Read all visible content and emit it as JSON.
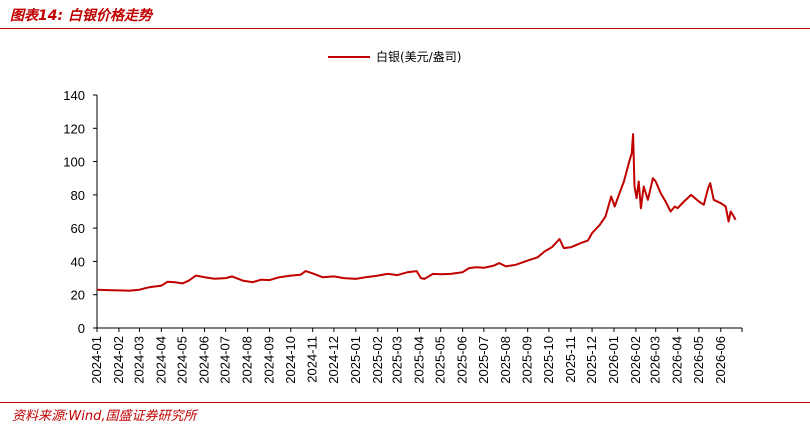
{
  "figure": {
    "title": "图表14:  白银价格走势",
    "source": "资料来源:Wind,国盛证券研究所"
  },
  "colors": {
    "accent": "#c00000",
    "axis": "#000000"
  },
  "chart_data": {
    "type": "line",
    "title": "",
    "xlabel": "",
    "ylabel": "",
    "ylim": [
      0,
      140
    ],
    "yticks": [
      0,
      20,
      40,
      60,
      80,
      100,
      120,
      140
    ],
    "grid": false,
    "legend_position": "top-center",
    "x_tick_labels": [
      "2024-01",
      "2024-02",
      "2024-03",
      "2024-04",
      "2024-05",
      "2024-06",
      "2024-07",
      "2024-08",
      "2024-09",
      "2024-10",
      "2024-11",
      "2024-12",
      "2025-01",
      "2025-02",
      "2025-03",
      "2025-04",
      "2025-05",
      "2025-06",
      "2025-07",
      "2025-08",
      "2025-09",
      "2025-10",
      "2025-11",
      "2025-12",
      "2026-01",
      "2026-02",
      "2026-03",
      "2026-04",
      "2026-05",
      "2026-06"
    ],
    "series": [
      {
        "name": "白银(美元/盎司)",
        "color": "#c00000",
        "points": [
          [
            "2024-01-01",
            23.0
          ],
          [
            "2024-01-15",
            22.8
          ],
          [
            "2024-02-01",
            22.6
          ],
          [
            "2024-02-15",
            22.4
          ],
          [
            "2024-03-01",
            23.0
          ],
          [
            "2024-03-15",
            24.5
          ],
          [
            "2024-04-01",
            25.5
          ],
          [
            "2024-04-10",
            27.8
          ],
          [
            "2024-04-20",
            27.5
          ],
          [
            "2024-05-01",
            26.8
          ],
          [
            "2024-05-10",
            28.5
          ],
          [
            "2024-05-20",
            31.5
          ],
          [
            "2024-06-01",
            30.5
          ],
          [
            "2024-06-15",
            29.6
          ],
          [
            "2024-07-01",
            30.0
          ],
          [
            "2024-07-10",
            31.0
          ],
          [
            "2024-07-25",
            28.5
          ],
          [
            "2024-08-08",
            27.5
          ],
          [
            "2024-08-20",
            29.0
          ],
          [
            "2024-09-01",
            28.8
          ],
          [
            "2024-09-15",
            30.5
          ],
          [
            "2024-10-01",
            31.5
          ],
          [
            "2024-10-15",
            32.0
          ],
          [
            "2024-10-22",
            34.2
          ],
          [
            "2024-11-01",
            32.8
          ],
          [
            "2024-11-15",
            30.5
          ],
          [
            "2024-12-01",
            31.0
          ],
          [
            "2024-12-15",
            30.0
          ],
          [
            "2025-01-01",
            29.5
          ],
          [
            "2025-01-15",
            30.5
          ],
          [
            "2025-02-01",
            31.5
          ],
          [
            "2025-02-15",
            32.5
          ],
          [
            "2025-03-01",
            31.8
          ],
          [
            "2025-03-15",
            33.5
          ],
          [
            "2025-03-28",
            34.2
          ],
          [
            "2025-04-03",
            30.0
          ],
          [
            "2025-04-08",
            29.5
          ],
          [
            "2025-04-20",
            32.5
          ],
          [
            "2025-05-01",
            32.3
          ],
          [
            "2025-05-15",
            32.5
          ],
          [
            "2025-06-01",
            33.5
          ],
          [
            "2025-06-10",
            36.0
          ],
          [
            "2025-06-20",
            36.5
          ],
          [
            "2025-07-01",
            36.2
          ],
          [
            "2025-07-15",
            37.5
          ],
          [
            "2025-07-23",
            39.0
          ],
          [
            "2025-08-01",
            37.0
          ],
          [
            "2025-08-15",
            38.0
          ],
          [
            "2025-09-01",
            40.5
          ],
          [
            "2025-09-15",
            42.5
          ],
          [
            "2025-09-25",
            46.0
          ],
          [
            "2025-10-05",
            48.5
          ],
          [
            "2025-10-16",
            53.5
          ],
          [
            "2025-10-22",
            48.0
          ],
          [
            "2025-11-01",
            48.5
          ],
          [
            "2025-11-15",
            51.0
          ],
          [
            "2025-11-25",
            52.5
          ],
          [
            "2025-12-01",
            57.0
          ],
          [
            "2025-12-12",
            62.0
          ],
          [
            "2025-12-20",
            67.0
          ],
          [
            "2025-12-28",
            79.0
          ],
          [
            "2026-01-02",
            73.0
          ],
          [
            "2026-01-08",
            80.0
          ],
          [
            "2026-01-15",
            88.0
          ],
          [
            "2026-01-22",
            99.0
          ],
          [
            "2026-01-26",
            105.0
          ],
          [
            "2026-01-28",
            116.5
          ],
          [
            "2026-01-30",
            85.0
          ],
          [
            "2026-02-02",
            78.0
          ],
          [
            "2026-02-05",
            88.0
          ],
          [
            "2026-02-08",
            72.0
          ],
          [
            "2026-02-12",
            85.0
          ],
          [
            "2026-02-18",
            77.0
          ],
          [
            "2026-02-25",
            90.0
          ],
          [
            "2026-03-01",
            88.0
          ],
          [
            "2026-03-08",
            81.0
          ],
          [
            "2026-03-15",
            76.0
          ],
          [
            "2026-03-22",
            70.0
          ],
          [
            "2026-03-28",
            73.0
          ],
          [
            "2026-04-01",
            72.0
          ],
          [
            "2026-04-10",
            76.0
          ],
          [
            "2026-04-20",
            80.0
          ],
          [
            "2026-05-01",
            76.0
          ],
          [
            "2026-05-08",
            74.0
          ],
          [
            "2026-05-14",
            84.0
          ],
          [
            "2026-05-17",
            87.0
          ],
          [
            "2026-05-22",
            77.0
          ],
          [
            "2026-06-01",
            75.0
          ],
          [
            "2026-06-08",
            73.0
          ],
          [
            "2026-06-12",
            64.0
          ],
          [
            "2026-06-15",
            70.0
          ],
          [
            "2026-06-18",
            68.0
          ],
          [
            "2026-06-22",
            65.0
          ]
        ]
      }
    ]
  }
}
